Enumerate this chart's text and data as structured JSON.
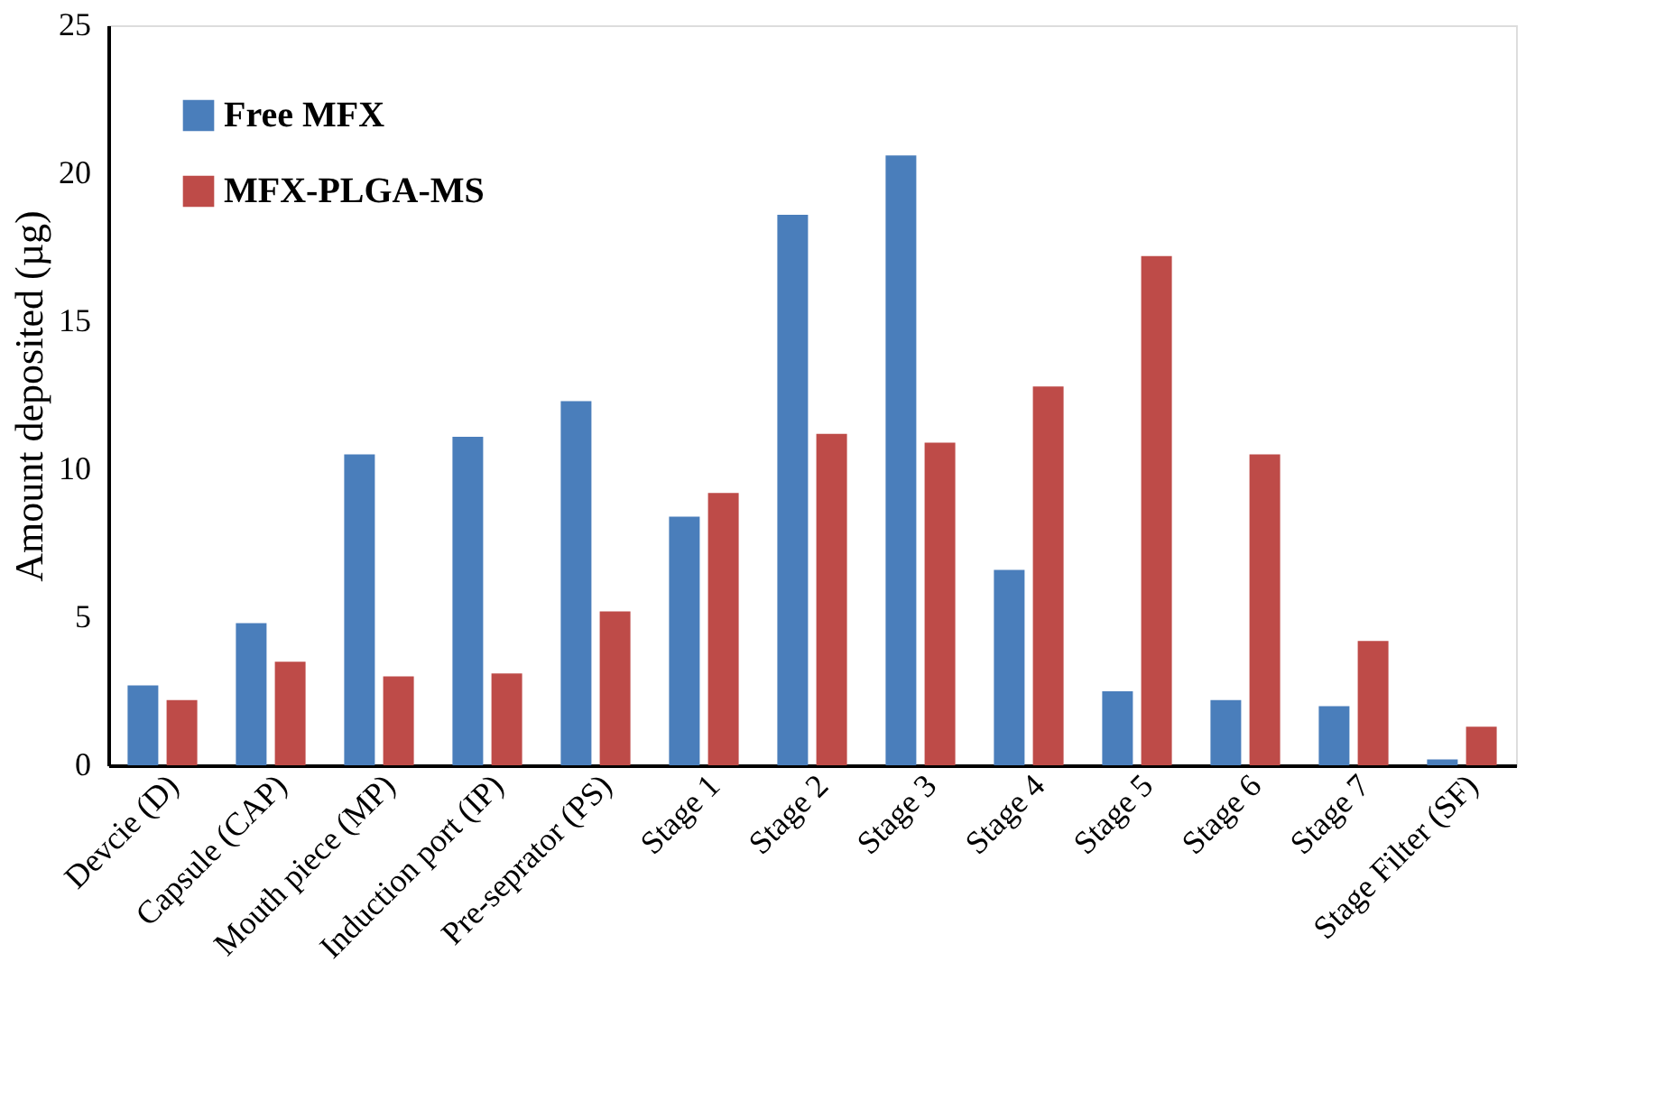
{
  "chart_data": {
    "type": "bar",
    "ylabel": "Amount deposited (µg)",
    "categories": [
      "Devcie (D)",
      "Capsule (CAP)",
      "Mouth piece (MP)",
      "Induction port (IP)",
      "Pre-seprator (PS)",
      "Stage 1",
      "Stage 2",
      "Stage 3",
      "Stage 4",
      "Stage 5",
      "Stage 6",
      "Stage 7",
      "Stage Filter (SF)"
    ],
    "series": [
      {
        "name": "Free MFX",
        "color": "#4a7ebb",
        "values": [
          2.7,
          4.8,
          10.5,
          11.1,
          12.3,
          8.4,
          18.6,
          20.6,
          6.6,
          2.5,
          2.2,
          2.0,
          0.2
        ]
      },
      {
        "name": "MFX-PLGA-MS",
        "color": "#be4b48",
        "values": [
          2.2,
          3.5,
          3.0,
          3.1,
          5.2,
          9.2,
          11.2,
          10.9,
          12.8,
          17.2,
          10.5,
          4.2,
          1.3
        ]
      }
    ],
    "ylim": [
      0,
      25
    ],
    "yticks": [
      0,
      5,
      10,
      15,
      20,
      25
    ],
    "grid": false,
    "legend": "top left"
  }
}
